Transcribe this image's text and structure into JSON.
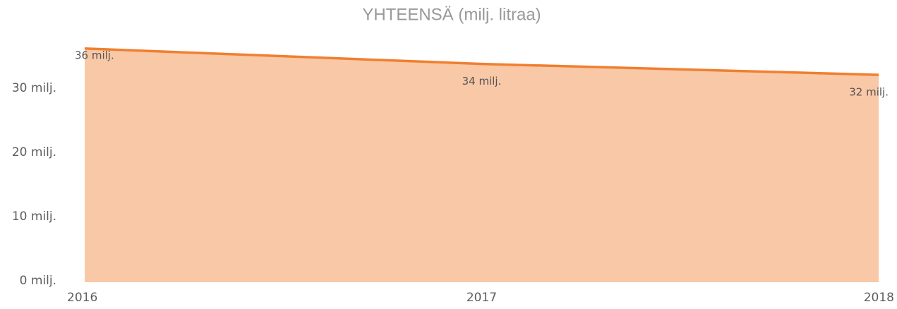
{
  "chart_data": {
    "type": "area",
    "title": "YHTEENSÄ (milj. litraa)",
    "categories": [
      "2016",
      "2017",
      "2018"
    ],
    "series": [
      {
        "name": "YHTEENSÄ",
        "color": "#f07f30",
        "fill": "#f9c8a6",
        "values": [
          36.4,
          34.0,
          32.3
        ],
        "value_labels": [
          "36 milj.",
          "34 milj.",
          "32 milj."
        ]
      }
    ],
    "ylim": [
      0,
      37
    ],
    "yticks": [
      {
        "value": 0,
        "label": "0 milj."
      },
      {
        "value": 10,
        "label": "10 milj."
      },
      {
        "value": 20,
        "label": "20 milj."
      },
      {
        "value": 30,
        "label": "30 milj."
      }
    ]
  }
}
